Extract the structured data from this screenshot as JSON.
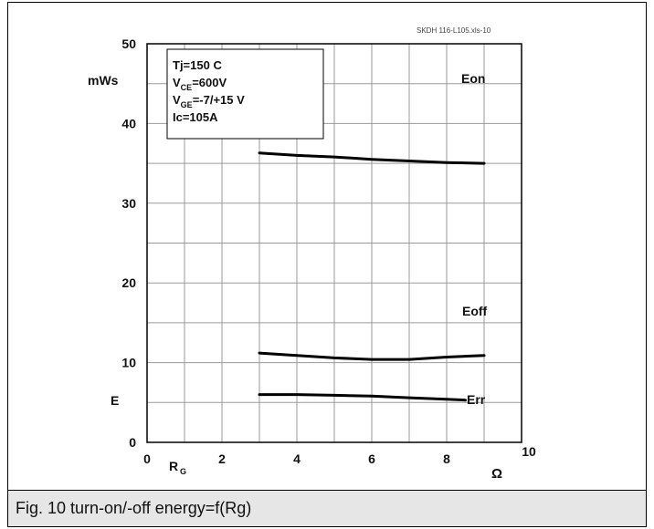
{
  "chart_data": {
    "type": "line",
    "file_tag": "SKDH 116-L105.xls-10",
    "ylabel_unit": "mWs",
    "ylabel": "E",
    "xlabel": "R",
    "xlabel_sub": "G",
    "xunit": "Ω",
    "xlim": [
      0,
      10
    ],
    "ylim": [
      0,
      50
    ],
    "xticks": [
      0,
      2,
      4,
      6,
      8,
      10
    ],
    "yticks": [
      0,
      10,
      20,
      30,
      40,
      50
    ],
    "grid": true,
    "conditions": [
      {
        "main": "Tj=150 C",
        "sub": "",
        "rest": ""
      },
      {
        "main": "V",
        "sub": "CE",
        "rest": "=600V"
      },
      {
        "main": "V",
        "sub": "GE",
        "rest": "=-7/+15 V"
      },
      {
        "main": "Ic=105A",
        "sub": "",
        "rest": ""
      }
    ],
    "series": [
      {
        "name": "Eon",
        "x": [
          3,
          4,
          5,
          6,
          7,
          8,
          9
        ],
        "y": [
          36.3,
          36.0,
          35.8,
          35.5,
          35.3,
          35.1,
          35.0
        ]
      },
      {
        "name": "Eoff",
        "x": [
          3,
          4,
          5,
          6,
          7,
          8,
          9
        ],
        "y": [
          11.2,
          10.9,
          10.6,
          10.4,
          10.4,
          10.7,
          10.9
        ]
      },
      {
        "name": "Err",
        "x": [
          3,
          4,
          5,
          6,
          7,
          8,
          8.5
        ],
        "y": [
          6.0,
          6.0,
          5.9,
          5.8,
          5.6,
          5.4,
          5.3
        ]
      }
    ]
  },
  "caption": "Fig. 10 turn-on/-off energy=f(Rg)"
}
